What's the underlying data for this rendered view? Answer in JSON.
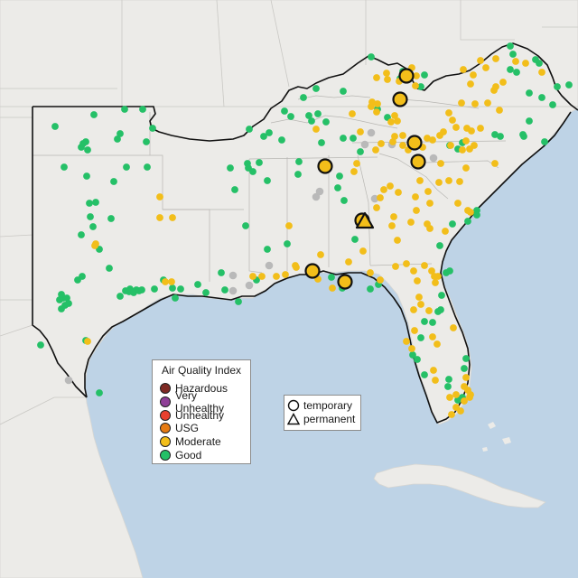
{
  "legend": {
    "title": "Air Quality Index",
    "categories": [
      {
        "label": "Hazardous",
        "color": "#7e2a24"
      },
      {
        "label": "Very Unhealthy",
        "color": "#8f3f97"
      },
      {
        "label": "Unhealthy",
        "color": "#e8402e"
      },
      {
        "label": "USG",
        "color": "#e67b13"
      },
      {
        "label": "Moderate",
        "color": "#f2be1a"
      },
      {
        "label": "Good",
        "color": "#25c067"
      }
    ]
  },
  "monitor_types": {
    "temporary": "temporary",
    "permanent": "permanent"
  },
  "colors": {
    "ocean": "#bed3e6",
    "land": "#ecebe8",
    "outline": "#111111",
    "no_data": "#b9b9b9"
  }
}
